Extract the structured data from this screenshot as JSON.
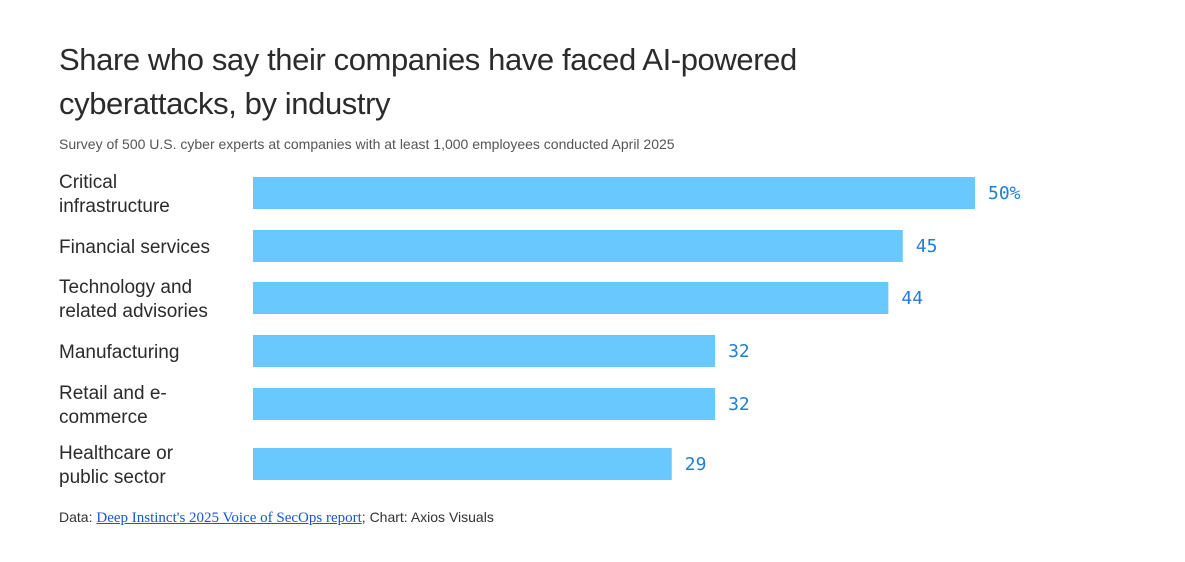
{
  "chart_data": {
    "type": "bar",
    "orientation": "horizontal",
    "title": "Share who say their companies have faced AI-powered cyberattacks, by industry",
    "subtitle": "Survey of 500 U.S. cyber experts at companies with at least 1,000 employees conducted April 2025",
    "categories": [
      [
        "Critical",
        "infrastructure"
      ],
      [
        "Financial services"
      ],
      [
        "Technology and",
        "related advisories"
      ],
      [
        "Manufacturing"
      ],
      [
        "Retail and e-",
        "commerce"
      ],
      [
        "Healthcare or",
        "public sector"
      ]
    ],
    "values": [
      50,
      45,
      44,
      32,
      32,
      29
    ],
    "value_labels": [
      "50%",
      "45",
      "44",
      "32",
      "32",
      "29"
    ],
    "unit": "%",
    "xlim": [
      0,
      50
    ],
    "grid": false,
    "legend": "none",
    "bar_color": "#69c8fd",
    "label_color": "#1f7fd4"
  },
  "footer": {
    "prefix": "Data: ",
    "link_text": "Deep Instinct's 2025 Voice of SecOps report",
    "suffix": "; Chart: Axios Visuals"
  }
}
